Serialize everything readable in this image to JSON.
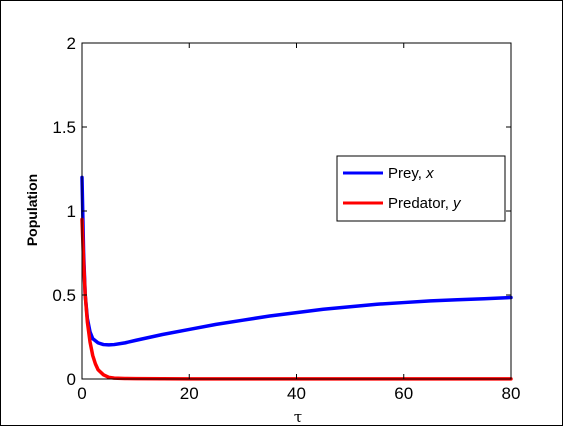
{
  "chart_data": {
    "type": "line",
    "xlabel": "τ",
    "ylabel": "Population",
    "xlim": [
      0,
      80
    ],
    "ylim": [
      0,
      2
    ],
    "xticks": [
      0,
      20,
      40,
      60,
      80
    ],
    "yticks": [
      0,
      0.5,
      1,
      1.5,
      2
    ],
    "xtick_labels": [
      "0",
      "20",
      "40",
      "60",
      "80"
    ],
    "ytick_labels": [
      "0",
      "0.5",
      "1",
      "1.5",
      "2"
    ],
    "grid": false,
    "legend_position": "right",
    "series": [
      {
        "name": "Prey, x",
        "label_text": "Prey, ",
        "label_var": "x",
        "color": "#0000ff",
        "x": [
          0,
          0.3,
          0.6,
          1,
          1.5,
          2,
          3,
          4,
          5,
          6,
          8,
          10,
          15,
          20,
          25,
          30,
          35,
          40,
          45,
          50,
          55,
          60,
          65,
          70,
          75,
          80
        ],
        "y": [
          1.2,
          0.75,
          0.5,
          0.36,
          0.28,
          0.24,
          0.215,
          0.205,
          0.203,
          0.205,
          0.215,
          0.23,
          0.265,
          0.295,
          0.325,
          0.35,
          0.375,
          0.395,
          0.415,
          0.43,
          0.445,
          0.455,
          0.465,
          0.472,
          0.478,
          0.485
        ]
      },
      {
        "name": "Predator, y",
        "label_text": "Predator, ",
        "label_var": "y",
        "color": "#ff0000",
        "x": [
          0,
          0.3,
          0.6,
          1,
          1.5,
          2,
          2.5,
          3,
          4,
          5,
          6,
          8,
          10,
          20,
          40,
          60,
          80
        ],
        "y": [
          0.95,
          0.7,
          0.5,
          0.34,
          0.22,
          0.14,
          0.09,
          0.055,
          0.025,
          0.01,
          0.005,
          0.003,
          0.002,
          0.001,
          0.001,
          0.001,
          0.001
        ]
      }
    ]
  }
}
